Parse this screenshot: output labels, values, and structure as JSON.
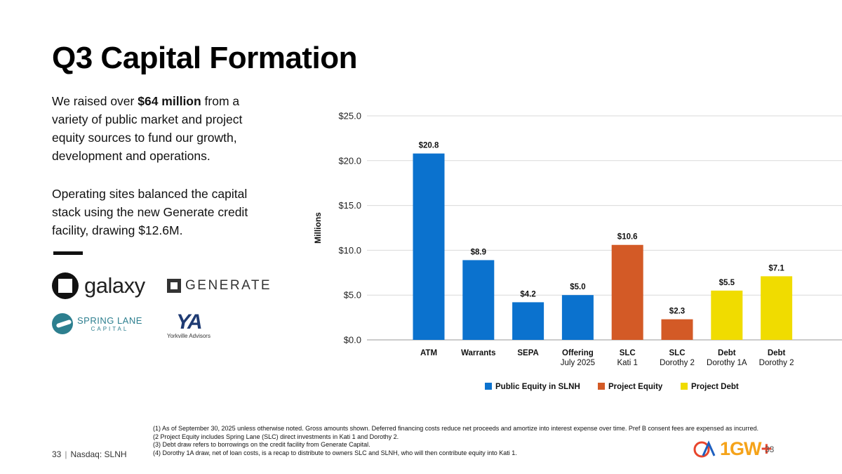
{
  "title": "Q3 Capital Formation",
  "para1": {
    "pre": "We raised over ",
    "bold": "$64 million",
    "post": " from a variety of public market and project equity sources to fund our growth, development and operations."
  },
  "para2": "Operating sites balanced the capital stack using the new Generate credit facility, drawing $12.6M.",
  "logos": {
    "galaxy": "galaxy",
    "generate": "GENERATE",
    "spring_lane_main": "SPRING LANE",
    "spring_lane_sub": "CAPITAL",
    "yorkville_mark": "YA",
    "yorkville_text": "Yorkville Advisors"
  },
  "chart_data": {
    "type": "bar",
    "ylabel": "Millions",
    "ylim": [
      0,
      25
    ],
    "yticks": [
      "$0.0",
      "$5.0",
      "$10.0",
      "$15.0",
      "$20.0",
      "$25.0"
    ],
    "ytick_values": [
      0,
      5,
      10,
      15,
      20,
      25
    ],
    "grid": true,
    "categories": [
      {
        "line1": "ATM",
        "line2": ""
      },
      {
        "line1": "Warrants",
        "line2": ""
      },
      {
        "line1": "SEPA",
        "line2": ""
      },
      {
        "line1": "Offering",
        "line2": "July 2025"
      },
      {
        "line1": "SLC",
        "line2": "Kati 1"
      },
      {
        "line1": "SLC",
        "line2": "Dorothy 2"
      },
      {
        "line1": "Debt",
        "line2": "Dorothy 1A"
      },
      {
        "line1": "Debt",
        "line2": "Dorothy 2"
      }
    ],
    "values": [
      20.8,
      8.9,
      4.2,
      5.0,
      10.6,
      2.3,
      5.5,
      7.1
    ],
    "value_labels": [
      "$20.8",
      "$8.9",
      "$4.2",
      "$5.0",
      "$10.6",
      "$2.3",
      "$5.5",
      "$7.1"
    ],
    "series_index": [
      0,
      0,
      0,
      0,
      1,
      1,
      2,
      2
    ],
    "series": [
      {
        "name": "Public Equity in SLNH",
        "color": "#0b72ce"
      },
      {
        "name": "Project Equity",
        "color": "#d35a26"
      },
      {
        "name": "Project Debt",
        "color": "#f0dc00"
      }
    ],
    "legend_position": "bottom"
  },
  "footnotes": [
    "(1) As of September 30, 2025 unless otherwise noted. Gross amounts shown. Deferred financing costs reduce net proceeds and amortize into interest expense over time. Pref B consent fees are expensed as incurred.",
    "(2  Project Equity includes Spring Lane (SLC) direct investments in Kati 1 and Dorothy 2.",
    "(3) Debt draw refers to borrowings on the credit facility from Generate Capital.",
    "(4) Dorothy 1A draw, net of loan costs, is a recap to distribute to owners SLC and SLNH, who will then contribute equity into Kati 1."
  ],
  "footer": {
    "page": "33",
    "ticker": "Nasdaq: SLNH",
    "brand": "1GW",
    "brand_plus": "+",
    "brand_page": "33"
  }
}
